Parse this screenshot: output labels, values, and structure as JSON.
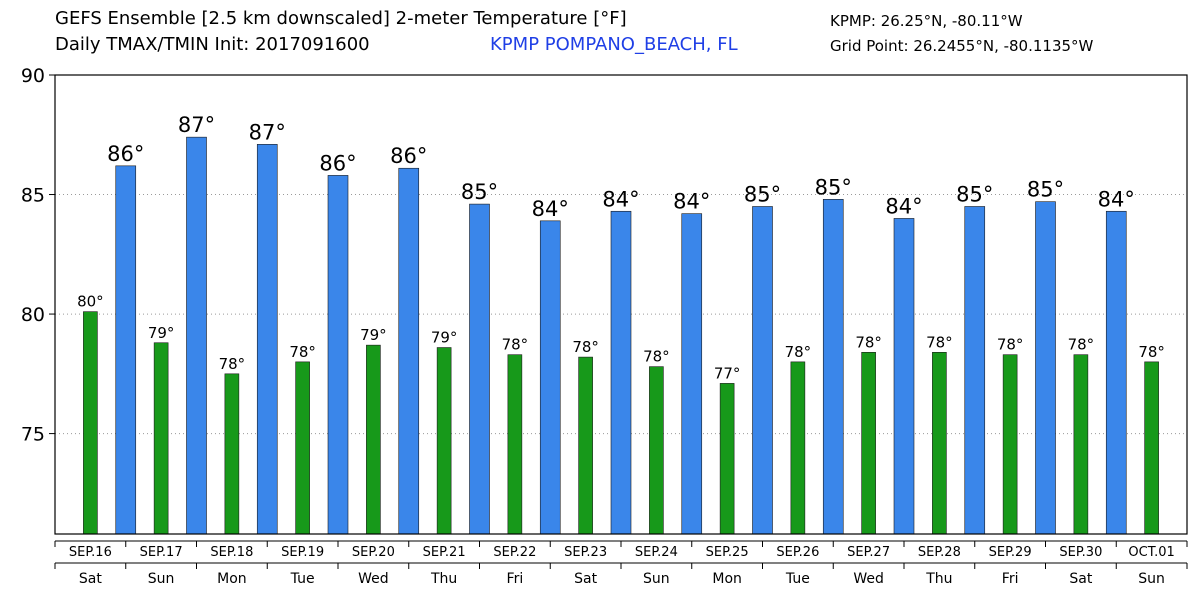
{
  "header": {
    "title_line1": "GEFS Ensemble [2.5 km downscaled] 2-meter Temperature [°F]",
    "title_line2": "Daily TMAX/TMIN Init: 2017091600",
    "station": "KPMP POMPANO_BEACH, FL",
    "station_coord": "KPMP: 26.25°N, -80.11°W",
    "grid_point": "Grid Point: 26.2455°N, -80.1135°W"
  },
  "colors": {
    "tmax": "#3a86ea",
    "tmin": "#17991a",
    "station_text": "#1f3fe6"
  },
  "chart_data": {
    "type": "bar",
    "ylim": [
      70.8,
      90
    ],
    "yticks": [
      75,
      80,
      85,
      90
    ],
    "grid": "dotted-horizontal",
    "dates": [
      "SEP.16",
      "SEP.17",
      "SEP.18",
      "SEP.19",
      "SEP.20",
      "SEP.21",
      "SEP.22",
      "SEP.23",
      "SEP.24",
      "SEP.25",
      "SEP.26",
      "SEP.27",
      "SEP.28",
      "SEP.29",
      "SEP.30",
      "OCT.01"
    ],
    "weekdays": [
      "Sat",
      "Sun",
      "Mon",
      "Tue",
      "Wed",
      "Thu",
      "Fri",
      "Sat",
      "Sun",
      "Mon",
      "Tue",
      "Wed",
      "Thu",
      "Fri",
      "Sat",
      "Sun"
    ],
    "series": [
      {
        "key": "tmin",
        "x": [
          0.5,
          1.5,
          2.5,
          3.5,
          4.5,
          5.5,
          6.5,
          7.5,
          8.5,
          9.5,
          10.5,
          11.5,
          12.5,
          13.5,
          14.5,
          15.5
        ],
        "values": [
          80.1,
          78.8,
          77.5,
          78.0,
          78.7,
          78.6,
          78.3,
          78.2,
          77.8,
          77.1,
          78.0,
          78.4,
          78.4,
          78.3,
          78.3,
          78.0
        ],
        "labels": [
          "80°",
          "79°",
          "78°",
          "78°",
          "79°",
          "79°",
          "78°",
          "78°",
          "78°",
          "77°",
          "78°",
          "78°",
          "78°",
          "78°",
          "78°",
          "78°"
        ]
      },
      {
        "key": "tmax",
        "x": [
          1,
          2,
          3,
          4,
          5,
          6,
          7,
          8,
          9,
          10,
          11,
          12,
          13,
          14,
          15
        ],
        "values": [
          86.2,
          87.4,
          87.1,
          85.8,
          86.1,
          84.6,
          83.9,
          84.3,
          84.2,
          84.5,
          84.8,
          84.0,
          84.5,
          84.7,
          84.3
        ],
        "labels": [
          "86°",
          "87°",
          "87°",
          "86°",
          "86°",
          "85°",
          "84°",
          "84°",
          "84°",
          "85°",
          "85°",
          "84°",
          "85°",
          "85°",
          "84°"
        ]
      }
    ]
  }
}
